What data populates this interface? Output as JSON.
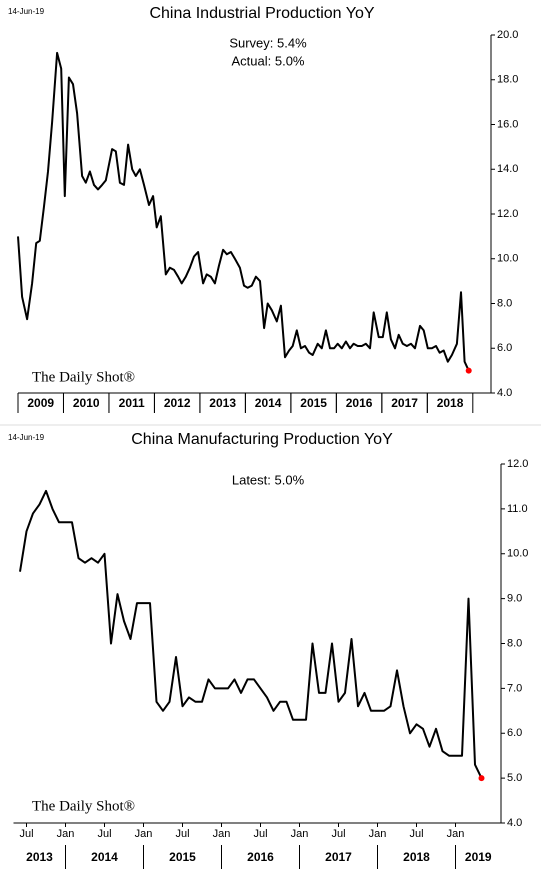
{
  "chart_data": [
    {
      "type": "line",
      "title": "China Industrial Production YoY",
      "date_stamp": "14-Jun-19",
      "annotations": [
        "Survey: 5.4%",
        "Actual:  5.0%"
      ],
      "watermark": "The Daily Shot®",
      "color": "#000000",
      "last_point_color": "#ff0000",
      "x": [
        2009.0,
        2009.09,
        2009.2,
        2009.31,
        2009.4,
        2009.48,
        2009.57,
        2009.66,
        2009.75,
        2009.86,
        2009.95,
        2010.03,
        2010.12,
        2010.21,
        2010.3,
        2010.41,
        2010.49,
        2010.58,
        2010.67,
        2010.76,
        2010.85,
        2010.93,
        2011.07,
        2011.15,
        2011.24,
        2011.33,
        2011.42,
        2011.51,
        2011.59,
        2011.68,
        2011.77,
        2011.88,
        2011.97,
        2012.05,
        2012.14,
        2012.25,
        2012.34,
        2012.43,
        2012.52,
        2012.6,
        2012.69,
        2012.78,
        2012.87,
        2012.96,
        2013.07,
        2013.15,
        2013.24,
        2013.33,
        2013.42,
        2013.51,
        2013.59,
        2013.68,
        2013.77,
        2013.88,
        2013.97,
        2014.05,
        2014.14,
        2014.23,
        2014.32,
        2014.41,
        2014.49,
        2014.58,
        2014.69,
        2014.78,
        2014.87,
        2014.96,
        2015.04,
        2015.13,
        2015.22,
        2015.31,
        2015.4,
        2015.48,
        2015.59,
        2015.68,
        2015.77,
        2015.86,
        2015.95,
        2016.03,
        2016.12,
        2016.21,
        2016.3,
        2016.38,
        2016.47,
        2016.56,
        2016.65,
        2016.74,
        2016.82,
        2016.93,
        2017.02,
        2017.11,
        2017.2,
        2017.29,
        2017.37,
        2017.46,
        2017.55,
        2017.64,
        2017.73,
        2017.84,
        2017.92,
        2018.01,
        2018.1,
        2018.19,
        2018.27,
        2018.36,
        2018.45,
        2018.54,
        2018.65,
        2018.74,
        2018.82,
        2018.91
      ],
      "values": [
        11.0,
        8.3,
        7.3,
        8.9,
        10.7,
        10.8,
        12.3,
        13.9,
        16.1,
        19.2,
        18.5,
        12.8,
        18.1,
        17.8,
        16.5,
        13.7,
        13.4,
        13.9,
        13.3,
        13.1,
        13.3,
        13.5,
        14.9,
        14.8,
        13.4,
        13.3,
        15.1,
        14.0,
        13.7,
        14.0,
        13.3,
        12.4,
        12.8,
        11.4,
        11.9,
        9.3,
        9.6,
        9.5,
        9.2,
        8.9,
        9.2,
        9.6,
        10.1,
        10.3,
        8.9,
        9.3,
        9.2,
        8.9,
        9.7,
        10.4,
        10.2,
        10.3,
        10.0,
        9.6,
        8.8,
        8.7,
        8.8,
        9.2,
        9.0,
        6.9,
        8.0,
        7.7,
        7.2,
        7.9,
        5.6,
        5.9,
        6.1,
        6.8,
        6.0,
        6.1,
        5.8,
        5.7,
        6.2,
        6.0,
        6.8,
        6.0,
        6.0,
        6.2,
        6.0,
        6.3,
        6.0,
        6.2,
        6.1,
        6.1,
        6.2,
        6.0,
        7.6,
        6.5,
        6.5,
        7.6,
        6.4,
        6.0,
        6.6,
        6.2,
        6.1,
        6.2,
        6.0,
        7.0,
        6.8,
        6.0,
        6.0,
        6.1,
        5.8,
        5.9,
        5.4,
        5.7,
        6.2,
        8.5,
        5.4,
        5.0
      ],
      "xlim": [
        2009,
        2019.4
      ],
      "xticks": [
        {
          "value": 2009.5,
          "label": "2009"
        },
        {
          "value": 2010.5,
          "label": "2010"
        },
        {
          "value": 2011.5,
          "label": "2011"
        },
        {
          "value": 2012.5,
          "label": "2012"
        },
        {
          "value": 2013.5,
          "label": "2013"
        },
        {
          "value": 2014.5,
          "label": "2014"
        },
        {
          "value": 2015.5,
          "label": "2015"
        },
        {
          "value": 2016.5,
          "label": "2016"
        },
        {
          "value": 2017.5,
          "label": "2017"
        },
        {
          "value": 2018.5,
          "label": "2018"
        }
      ],
      "ylim": [
        4,
        20
      ],
      "yticks": [
        {
          "value": 4,
          "label": "4.0"
        },
        {
          "value": 6,
          "label": "6.0"
        },
        {
          "value": 8,
          "label": "8.0"
        },
        {
          "value": 10,
          "label": "10.0"
        },
        {
          "value": 12,
          "label": "12.0"
        },
        {
          "value": 14,
          "label": "14.0"
        },
        {
          "value": 16,
          "label": "16.0"
        },
        {
          "value": 18,
          "label": "18.0"
        },
        {
          "value": 20,
          "label": "20.0"
        }
      ]
    },
    {
      "type": "line",
      "title": "China Manufacturing Production YoY",
      "date_stamp": "14-Jun-19",
      "annotations": [
        "Latest:  5.0%"
      ],
      "watermark": "The Daily Shot®",
      "color": "#000000",
      "last_point_color": "#ff0000",
      "x": [
        "2013-06",
        "2013-07",
        "2013-08",
        "2013-09",
        "2013-10",
        "2013-11",
        "2013-12",
        "2014-01",
        "2014-02",
        "2014-03",
        "2014-04",
        "2014-05",
        "2014-06",
        "2014-07",
        "2014-08",
        "2014-09",
        "2014-10",
        "2014-11",
        "2014-12",
        "2015-01",
        "2015-02",
        "2015-03",
        "2015-04",
        "2015-05",
        "2015-06",
        "2015-07",
        "2015-08",
        "2015-09",
        "2015-10",
        "2015-11",
        "2015-12",
        "2016-01",
        "2016-02",
        "2016-03",
        "2016-04",
        "2016-05",
        "2016-06",
        "2016-07",
        "2016-08",
        "2016-09",
        "2016-10",
        "2016-11",
        "2016-12",
        "2017-01",
        "2017-02",
        "2017-03",
        "2017-04",
        "2017-05",
        "2017-06",
        "2017-07",
        "2017-08",
        "2017-09",
        "2017-10",
        "2017-11",
        "2017-12",
        "2018-01",
        "2018-02",
        "2018-03",
        "2018-04",
        "2018-05",
        "2018-06",
        "2018-07",
        "2018-08",
        "2018-09",
        "2018-10",
        "2018-11",
        "2018-12",
        "2019-01",
        "2019-02",
        "2019-03",
        "2019-04",
        "2019-05"
      ],
      "values": [
        9.6,
        10.5,
        10.9,
        11.1,
        11.4,
        11.0,
        10.7,
        10.7,
        10.7,
        9.9,
        9.8,
        9.9,
        9.8,
        10.0,
        8.0,
        9.1,
        8.5,
        8.1,
        8.9,
        8.9,
        8.9,
        6.7,
        6.5,
        6.7,
        7.7,
        6.6,
        6.8,
        6.7,
        6.7,
        7.2,
        7.0,
        7.0,
        7.0,
        7.2,
        6.9,
        7.2,
        7.2,
        7.0,
        6.8,
        6.5,
        6.7,
        6.7,
        6.3,
        6.3,
        6.3,
        8.0,
        6.9,
        6.9,
        8.0,
        6.7,
        6.9,
        8.1,
        6.6,
        6.9,
        6.5,
        6.5,
        6.5,
        6.6,
        7.4,
        6.6,
        6.0,
        6.2,
        6.1,
        5.7,
        6.1,
        5.6,
        5.5,
        5.5,
        5.5,
        9.0,
        5.3,
        5.0
      ],
      "xlim": [
        "2013-05",
        "2019-08"
      ],
      "xticks": [
        {
          "value": "2013-07",
          "label": "Jul"
        },
        {
          "value": "2014-01",
          "label": "Jan"
        },
        {
          "value": "2014-07",
          "label": "Jul"
        },
        {
          "value": "2015-01",
          "label": "Jan"
        },
        {
          "value": "2015-07",
          "label": "Jul"
        },
        {
          "value": "2016-01",
          "label": "Jan"
        },
        {
          "value": "2016-07",
          "label": "Jul"
        },
        {
          "value": "2017-01",
          "label": "Jan"
        },
        {
          "value": "2017-07",
          "label": "Jul"
        },
        {
          "value": "2018-01",
          "label": "Jan"
        },
        {
          "value": "2018-07",
          "label": "Jul"
        },
        {
          "value": "2019-01",
          "label": "Jan"
        }
      ],
      "years": [
        "2013",
        "2014",
        "2015",
        "2016",
        "2017",
        "2018",
        "2019"
      ],
      "ylim": [
        4,
        12
      ],
      "yticks": [
        {
          "value": 4,
          "label": "4.0"
        },
        {
          "value": 5,
          "label": "5.0"
        },
        {
          "value": 6,
          "label": "6.0"
        },
        {
          "value": 7,
          "label": "7.0"
        },
        {
          "value": 8,
          "label": "8.0"
        },
        {
          "value": 9,
          "label": "9.0"
        },
        {
          "value": 10,
          "label": "10.0"
        },
        {
          "value": 11,
          "label": "11.0"
        },
        {
          "value": 12,
          "label": "12.0"
        }
      ]
    }
  ]
}
